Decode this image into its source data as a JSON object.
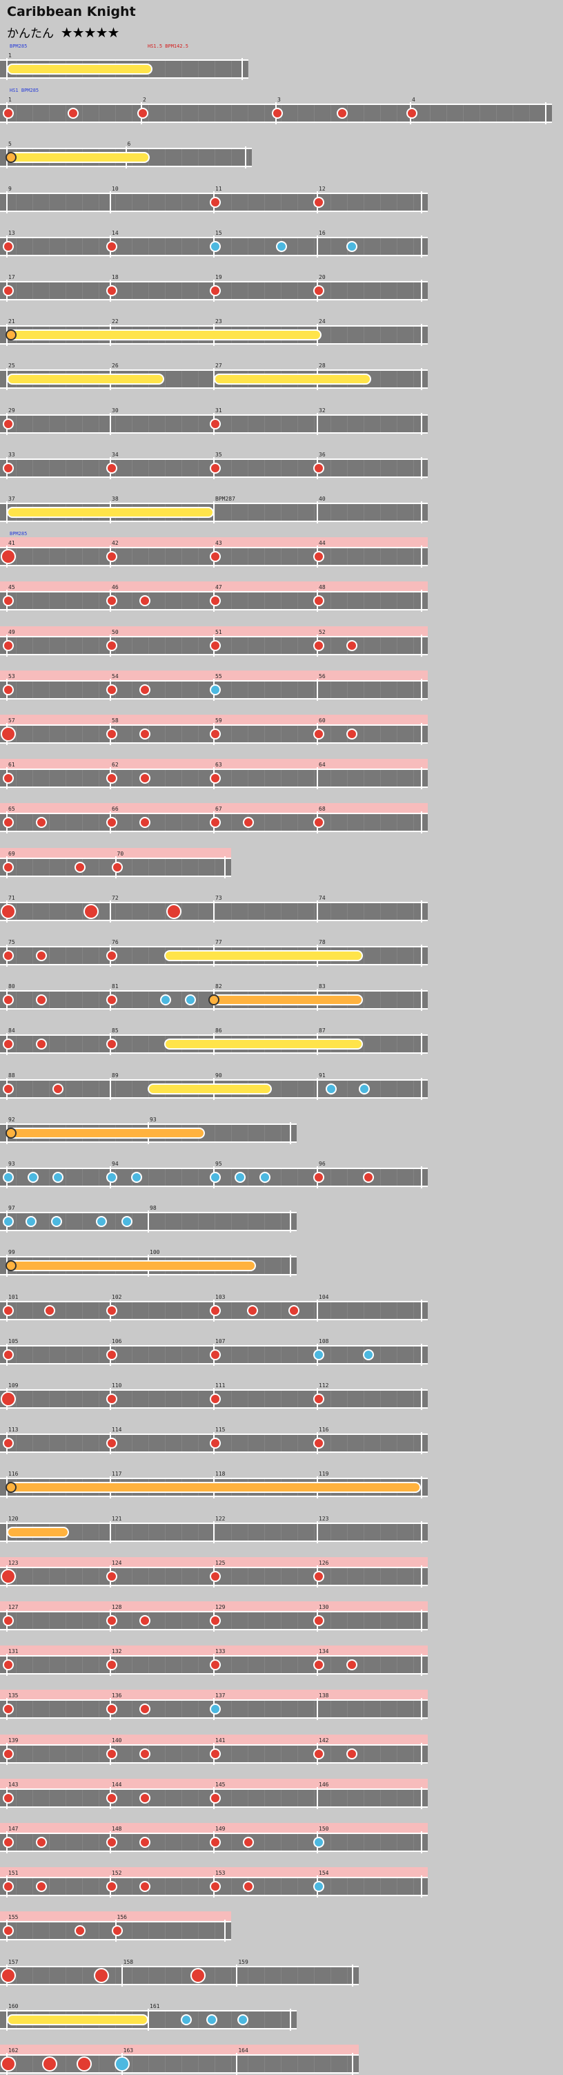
{
  "song": {
    "title": "Caribbean Knight",
    "difficulty_name": "かんたん",
    "stars": "★★★★★"
  },
  "colors": {
    "lane": "#787878",
    "gogo": "#f7bcbc",
    "don": "#e23c31",
    "ka": "#4cb8e0",
    "roll_yellow": "#ffe44a",
    "roll_orange": "#ffb23e",
    "event_blue": "#2a3fd8",
    "event_red": "#d42020"
  },
  "rows": [
    {
      "measures": [
        "1"
      ],
      "events": [
        {
          "t": "BPM285",
          "c": "blue"
        },
        {
          "t": "HS1.5\nBPM142.5",
          "c": "red"
        }
      ],
      "rolls": [
        {
          "k": "yellow",
          "a": 0.0,
          "b": 0.62
        }
      ],
      "notes": []
    },
    {
      "measures": [
        "1",
        "2",
        "3",
        "4"
      ],
      "gogo": false,
      "events": [
        {
          "t": "HS1\nBPM285",
          "c": "blue"
        }
      ],
      "notes": [
        [
          "d",
          0
        ],
        [
          "d",
          0.12
        ],
        [
          "d",
          0.25
        ],
        [
          "d",
          0.5
        ],
        [
          "d",
          0.62
        ],
        [
          "d",
          0.75
        ]
      ]
    },
    {
      "measures": [
        "5",
        "6"
      ],
      "notes": [],
      "rolls": [
        {
          "k": "yellow",
          "a": 0.0,
          "b": 0.6,
          "head": true
        }
      ]
    },
    {
      "measures": [
        "9",
        "10",
        "11",
        "12"
      ],
      "notes": [
        [
          "d",
          0.5
        ],
        [
          "d",
          0.75
        ]
      ]
    },
    {
      "measures": [
        "13",
        "14",
        "15",
        "16"
      ],
      "notes": [
        [
          "d",
          0
        ],
        [
          "d",
          0.25
        ],
        [
          "k",
          0.5
        ],
        [
          "k",
          0.66
        ],
        [
          "k",
          0.83
        ]
      ]
    },
    {
      "measures": [
        "17",
        "18",
        "19",
        "20"
      ],
      "notes": [
        [
          "d",
          0
        ],
        [
          "d",
          0.25
        ],
        [
          "d",
          0.5
        ],
        [
          "d",
          0.75
        ]
      ]
    },
    {
      "measures": [
        "21",
        "22",
        "23",
        "24"
      ],
      "notes": [],
      "rolls": [
        {
          "k": "yellow",
          "a": 0.0,
          "b": 0.76,
          "head": true
        }
      ]
    },
    {
      "measures": [
        "25",
        "26",
        "27",
        "28"
      ],
      "notes": [],
      "rolls": [
        {
          "k": "yellow",
          "a": 0.0,
          "b": 0.38
        },
        {
          "k": "yellow",
          "a": 0.5,
          "b": 0.88
        }
      ]
    },
    {
      "measures": [
        "29",
        "30",
        "31",
        "32"
      ],
      "notes": [
        [
          "d",
          0
        ],
        [
          "d",
          0.5
        ]
      ]
    },
    {
      "measures": [
        "33",
        "34",
        "35",
        "36"
      ],
      "notes": [
        [
          "d",
          0
        ],
        [
          "d",
          0.25
        ],
        [
          "d",
          0.5
        ],
        [
          "d",
          0.75
        ]
      ]
    },
    {
      "measures": [
        "37",
        "38",
        "BPM287",
        "40"
      ],
      "notes": [],
      "rolls": [
        {
          "k": "yellow",
          "a": 0.0,
          "b": 0.5
        }
      ]
    },
    {
      "measures": [
        "41",
        "42",
        "43",
        "44"
      ],
      "gogo": true,
      "events": [
        {
          "t": "BPM285",
          "c": "blue"
        }
      ],
      "notes": [
        [
          "D",
          0
        ],
        [
          "d",
          0.25
        ],
        [
          "d",
          0.5
        ],
        [
          "d",
          0.75
        ]
      ]
    },
    {
      "measures": [
        "45",
        "46",
        "47",
        "48"
      ],
      "gogo": true,
      "notes": [
        [
          "d",
          0
        ],
        [
          "d",
          0.25
        ],
        [
          "d",
          0.33
        ],
        [
          "d",
          0.5
        ],
        [
          "d",
          0.75
        ]
      ]
    },
    {
      "measures": [
        "49",
        "50",
        "51",
        "52"
      ],
      "gogo": true,
      "notes": [
        [
          "d",
          0
        ],
        [
          "d",
          0.25
        ],
        [
          "d",
          0.5
        ],
        [
          "d",
          0.75
        ],
        [
          "d",
          0.83
        ]
      ]
    },
    {
      "measures": [
        "53",
        "54",
        "55",
        "56"
      ],
      "gogo": true,
      "notes": [
        [
          "d",
          0
        ],
        [
          "d",
          0.25
        ],
        [
          "d",
          0.33
        ],
        [
          "k",
          0.5
        ]
      ]
    },
    {
      "measures": [
        "57",
        "58",
        "59",
        "60"
      ],
      "gogo": true,
      "notes": [
        [
          "D",
          0
        ],
        [
          "d",
          0.25
        ],
        [
          "d",
          0.33
        ],
        [
          "d",
          0.5
        ],
        [
          "d",
          0.75
        ],
        [
          "d",
          0.83
        ]
      ]
    },
    {
      "measures": [
        "61",
        "62",
        "63",
        "64"
      ],
      "gogo": true,
      "notes": [
        [
          "d",
          0
        ],
        [
          "d",
          0.25
        ],
        [
          "d",
          0.33
        ],
        [
          "d",
          0.5
        ]
      ]
    },
    {
      "measures": [
        "65",
        "66",
        "67",
        "68"
      ],
      "gogo": true,
      "notes": [
        [
          "d",
          0
        ],
        [
          "d",
          0.08
        ],
        [
          "d",
          0.25
        ],
        [
          "d",
          0.33
        ],
        [
          "d",
          0.5
        ],
        [
          "d",
          0.58
        ],
        [
          "d",
          0.75
        ]
      ]
    },
    {
      "measures": [
        "69",
        "70"
      ],
      "gogo": true,
      "half": true,
      "notes": [
        [
          "d",
          0
        ],
        [
          "d",
          0.33
        ],
        [
          "d",
          0.5
        ]
      ]
    },
    {
      "measures": [
        "71",
        "72",
        "73",
        "74"
      ],
      "notes": [
        [
          "D",
          0
        ],
        [
          "D",
          0.2
        ],
        [
          "D",
          0.4
        ]
      ]
    },
    {
      "measures": [
        "75",
        "76",
        "77",
        "78"
      ],
      "notes": [
        [
          "d",
          0
        ],
        [
          "d",
          0.08
        ],
        [
          "d",
          0.25
        ]
      ],
      "rolls": [
        {
          "k": "yellow",
          "a": 0.38,
          "b": 0.86
        }
      ]
    },
    {
      "measures": [
        "80",
        "81",
        "82",
        "83"
      ],
      "notes": [
        [
          "d",
          0
        ],
        [
          "d",
          0.08
        ],
        [
          "d",
          0.25
        ],
        [
          "k",
          0.38
        ],
        [
          "k",
          0.44
        ]
      ],
      "rolls": [
        {
          "k": "orange",
          "a": 0.49,
          "b": 0.86,
          "head": true
        }
      ]
    },
    {
      "measures": [
        "84",
        "85",
        "86",
        "87"
      ],
      "notes": [
        [
          "d",
          0
        ],
        [
          "d",
          0.08
        ],
        [
          "d",
          0.25
        ]
      ],
      "rolls": [
        {
          "k": "yellow",
          "a": 0.38,
          "b": 0.86
        }
      ]
    },
    {
      "measures": [
        "88",
        "89",
        "90",
        "91"
      ],
      "notes": [
        [
          "d",
          0
        ],
        [
          "d",
          0.12
        ],
        [
          "k",
          0.78
        ],
        [
          "k",
          0.86
        ]
      ],
      "rolls": [
        {
          "k": "yellow",
          "a": 0.34,
          "b": 0.64
        }
      ]
    },
    {
      "measures": [
        "92",
        "93"
      ],
      "notes": [],
      "rolls": [
        {
          "k": "orange",
          "a": 0.0,
          "b": 0.7,
          "head": true
        }
      ]
    },
    {
      "measures": [
        "93",
        "94",
        "95",
        "96"
      ],
      "notes": [
        [
          "k",
          0
        ],
        [
          "k",
          0.06
        ],
        [
          "k",
          0.12
        ],
        [
          "k",
          0.25
        ],
        [
          "k",
          0.31
        ],
        [
          "k",
          0.5
        ],
        [
          "k",
          0.56
        ],
        [
          "k",
          0.62
        ],
        [
          "d",
          0.75
        ],
        [
          "d",
          0.87
        ]
      ]
    },
    {
      "measures": [
        "97",
        "98"
      ],
      "notes": [
        [
          "k",
          0
        ],
        [
          "k",
          0.08
        ],
        [
          "k",
          0.17
        ],
        [
          "k",
          0.33
        ],
        [
          "k",
          0.42
        ]
      ]
    },
    {
      "measures": [
        "99",
        "100"
      ],
      "notes": [],
      "rolls": [
        {
          "k": "orange",
          "a": 0.0,
          "b": 0.88,
          "head": true
        }
      ]
    },
    {
      "measures": [
        "101",
        "102",
        "103",
        "104"
      ],
      "notes": [
        [
          "d",
          0
        ],
        [
          "d",
          0.1
        ],
        [
          "d",
          0.25
        ],
        [
          "d",
          0.5
        ],
        [
          "d",
          0.59
        ],
        [
          "d",
          0.69
        ]
      ]
    },
    {
      "measures": [
        "105",
        "106",
        "107",
        "108"
      ],
      "notes": [
        [
          "d",
          0
        ],
        [
          "d",
          0.25
        ],
        [
          "d",
          0.5
        ],
        [
          "k",
          0.75
        ],
        [
          "k",
          0.87
        ]
      ]
    },
    {
      "measures": [
        "109",
        "110",
        "111",
        "112"
      ],
      "notes": [
        [
          "D",
          0
        ],
        [
          "d",
          0.25
        ],
        [
          "d",
          0.5
        ],
        [
          "d",
          0.75
        ]
      ]
    },
    {
      "measures": [
        "113",
        "114",
        "115",
        "116"
      ],
      "notes": [
        [
          "d",
          0
        ],
        [
          "d",
          0.25
        ],
        [
          "d",
          0.5
        ],
        [
          "d",
          0.75
        ]
      ]
    },
    {
      "measures": [
        "116",
        "117",
        "118",
        "119"
      ],
      "notes": [],
      "rolls": [
        {
          "k": "orange",
          "a": 0.0,
          "b": 1.0,
          "head": true
        }
      ]
    },
    {
      "measures": [
        "120",
        "121",
        "122",
        "123"
      ],
      "notes": [],
      "rolls": [
        {
          "k": "orange",
          "a": 0.0,
          "b": 0.15
        }
      ]
    },
    {
      "measures": [
        "123",
        "124",
        "125",
        "126"
      ],
      "gogo": true,
      "notes": [
        [
          "D",
          0
        ],
        [
          "d",
          0.25
        ],
        [
          "d",
          0.5
        ],
        [
          "d",
          0.75
        ]
      ]
    },
    {
      "measures": [
        "127",
        "128",
        "129",
        "130"
      ],
      "gogo": true,
      "notes": [
        [
          "d",
          0
        ],
        [
          "d",
          0.25
        ],
        [
          "d",
          0.33
        ],
        [
          "d",
          0.5
        ],
        [
          "d",
          0.75
        ]
      ]
    },
    {
      "measures": [
        "131",
        "132",
        "133",
        "134"
      ],
      "gogo": true,
      "notes": [
        [
          "d",
          0
        ],
        [
          "d",
          0.25
        ],
        [
          "d",
          0.5
        ],
        [
          "d",
          0.75
        ],
        [
          "d",
          0.83
        ]
      ]
    },
    {
      "measures": [
        "135",
        "136",
        "137",
        "138"
      ],
      "gogo": true,
      "notes": [
        [
          "d",
          0
        ],
        [
          "d",
          0.25
        ],
        [
          "d",
          0.33
        ],
        [
          "k",
          0.5
        ]
      ]
    },
    {
      "measures": [
        "139",
        "140",
        "141",
        "142"
      ],
      "gogo": true,
      "notes": [
        [
          "d",
          0
        ],
        [
          "d",
          0.25
        ],
        [
          "d",
          0.33
        ],
        [
          "d",
          0.5
        ],
        [
          "d",
          0.75
        ],
        [
          "d",
          0.83
        ]
      ]
    },
    {
      "measures": [
        "143",
        "144",
        "145",
        "146"
      ],
      "gogo": true,
      "notes": [
        [
          "d",
          0
        ],
        [
          "d",
          0.25
        ],
        [
          "d",
          0.33
        ],
        [
          "d",
          0.5
        ]
      ]
    },
    {
      "measures": [
        "147",
        "148",
        "149",
        "150"
      ],
      "gogo": true,
      "notes": [
        [
          "d",
          0
        ],
        [
          "d",
          0.08
        ],
        [
          "d",
          0.25
        ],
        [
          "d",
          0.33
        ],
        [
          "d",
          0.5
        ],
        [
          "d",
          0.58
        ],
        [
          "k",
          0.75
        ]
      ]
    },
    {
      "measures": [
        "151",
        "152",
        "153",
        "154"
      ],
      "gogo": true,
      "notes": [
        [
          "d",
          0
        ],
        [
          "d",
          0.08
        ],
        [
          "d",
          0.25
        ],
        [
          "d",
          0.33
        ],
        [
          "d",
          0.5
        ],
        [
          "d",
          0.58
        ],
        [
          "k",
          0.75
        ]
      ]
    },
    {
      "measures": [
        "155",
        "156"
      ],
      "gogo": true,
      "half": true,
      "notes": [
        [
          "d",
          0
        ],
        [
          "d",
          0.33
        ],
        [
          "d",
          0.5
        ]
      ]
    },
    {
      "measures": [
        "157",
        "158",
        "159"
      ],
      "notes": [
        [
          "D",
          0
        ],
        [
          "D",
          0.27
        ],
        [
          "D",
          0.55
        ]
      ]
    },
    {
      "measures": [
        "160",
        "161"
      ],
      "notes": [
        [
          "k",
          0.63
        ],
        [
          "k",
          0.72
        ],
        [
          "k",
          0.83
        ]
      ],
      "rolls": [
        {
          "k": "yellow",
          "a": 0.0,
          "b": 0.5
        }
      ]
    },
    {
      "measures": [
        "162",
        "163",
        "164"
      ],
      "gogo": true,
      "notes": [
        [
          "D",
          0
        ],
        [
          "D",
          0.12
        ],
        [
          "D",
          0.22
        ],
        [
          "K",
          0.33
        ]
      ]
    }
  ]
}
